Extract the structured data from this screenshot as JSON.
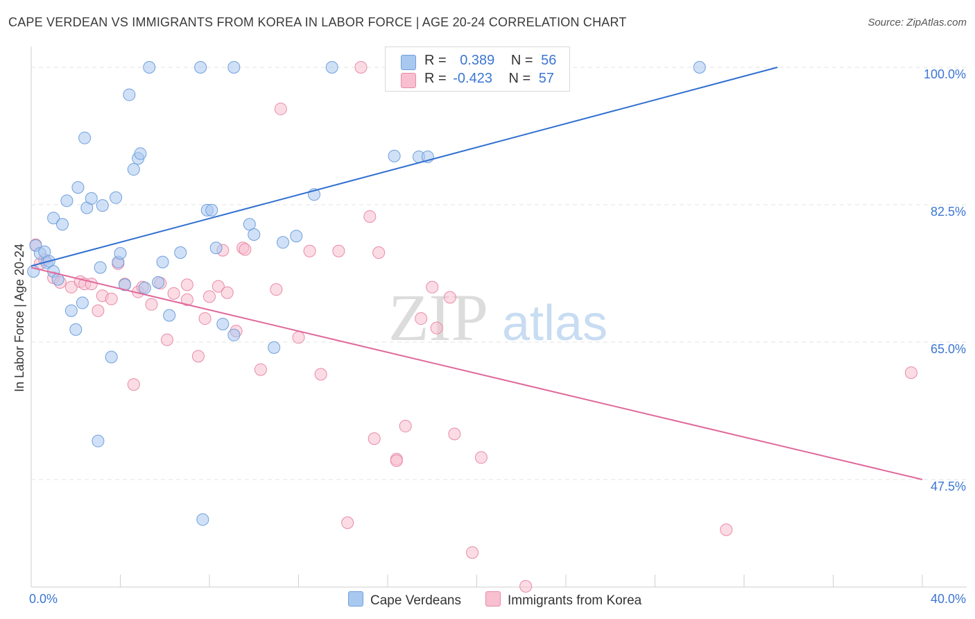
{
  "title": "CAPE VERDEAN VS IMMIGRANTS FROM KOREA IN LABOR FORCE | AGE 20-24 CORRELATION CHART",
  "source": "Source: ZipAtlas.com",
  "watermark": {
    "zip": "ZIP",
    "atlas": "atlas"
  },
  "legend": {
    "rows": [
      {
        "r_label": "R =",
        "r_value": "0.389",
        "n_label": "N =",
        "n_value": "56"
      },
      {
        "r_label": "R =",
        "r_value": "-0.423",
        "n_label": "N =",
        "n_value": "57"
      }
    ]
  },
  "bottom_legend": [
    "Cape Verdeans",
    "Immigrants from Korea"
  ],
  "colors": {
    "blue_fill": "#a9c8f0",
    "blue_stroke": "#6f9fdc",
    "blue_line": "#2f6fd0",
    "pink_fill": "#f7bfd0",
    "pink_stroke": "#e98aa8",
    "pink_line": "#e0689a",
    "tick_label": "#3b76d3",
    "grid": "#e3e3e3"
  },
  "chart_data": {
    "type": "scatter",
    "title": "CAPE VERDEAN VS IMMIGRANTS FROM KOREA IN LABOR FORCE | AGE 20-24 CORRELATION CHART",
    "xlabel": "",
    "ylabel": "In Labor Force | Age 20-24",
    "xlim": [
      0,
      40
    ],
    "ylim": [
      33.8,
      101.5
    ],
    "x_tick_labels": [
      {
        "value": 0,
        "label": "0.0%"
      },
      {
        "value": 40,
        "label": "40.0%"
      }
    ],
    "y_ticks": [
      {
        "value": 100.0,
        "label": "100.0%"
      },
      {
        "value": 82.5,
        "label": "82.5%"
      },
      {
        "value": 65.0,
        "label": "65.0%"
      },
      {
        "value": 47.5,
        "label": "47.5%"
      }
    ],
    "grid": true,
    "legend_position": "top-center",
    "series": [
      {
        "name": "Cape Verdeans",
        "color": "#a9c8f0",
        "trend": {
          "x": [
            0.0,
            33.5
          ],
          "y": [
            74.7,
            100.0
          ]
        },
        "points": [
          [
            0.1,
            74.0
          ],
          [
            0.2,
            77.3
          ],
          [
            0.4,
            76.3
          ],
          [
            0.6,
            76.5
          ],
          [
            0.7,
            75.1
          ],
          [
            0.8,
            75.3
          ],
          [
            1.0,
            74.0
          ],
          [
            1.2,
            73.0
          ],
          [
            1.0,
            80.8
          ],
          [
            1.4,
            80.0
          ],
          [
            1.6,
            83.0
          ],
          [
            1.8,
            69.0
          ],
          [
            2.0,
            66.6
          ],
          [
            2.1,
            84.7
          ],
          [
            2.3,
            70.0
          ],
          [
            2.4,
            91.0
          ],
          [
            2.5,
            82.1
          ],
          [
            2.7,
            83.3
          ],
          [
            3.0,
            52.4
          ],
          [
            3.1,
            74.5
          ],
          [
            3.2,
            82.4
          ],
          [
            3.6,
            63.1
          ],
          [
            3.8,
            83.4
          ],
          [
            3.9,
            75.2
          ],
          [
            4.0,
            76.3
          ],
          [
            4.2,
            72.3
          ],
          [
            4.4,
            96.5
          ],
          [
            4.6,
            87.0
          ],
          [
            4.8,
            88.4
          ],
          [
            4.9,
            89.0
          ],
          [
            5.1,
            71.9
          ],
          [
            5.3,
            100.0
          ],
          [
            5.7,
            72.6
          ],
          [
            5.9,
            75.2
          ],
          [
            6.2,
            68.4
          ],
          [
            6.7,
            76.4
          ],
          [
            7.6,
            100.0
          ],
          [
            7.7,
            42.4
          ],
          [
            7.9,
            81.8
          ],
          [
            8.1,
            81.8
          ],
          [
            8.3,
            77.0
          ],
          [
            8.6,
            67.3
          ],
          [
            9.1,
            65.9
          ],
          [
            9.1,
            100.0
          ],
          [
            9.8,
            80.0
          ],
          [
            10.0,
            78.7
          ],
          [
            10.9,
            64.3
          ],
          [
            11.3,
            77.7
          ],
          [
            11.9,
            78.5
          ],
          [
            12.7,
            83.8
          ],
          [
            13.5,
            100.0
          ],
          [
            16.3,
            88.7
          ],
          [
            17.4,
            88.6
          ],
          [
            17.8,
            88.6
          ],
          [
            21.8,
            100.0
          ],
          [
            30.0,
            100.0
          ]
        ]
      },
      {
        "name": "Immigrants from Korea",
        "color": "#f7bfd0",
        "trend": {
          "x": [
            0.0,
            40.0
          ],
          "y": [
            74.5,
            47.5
          ]
        },
        "points": [
          [
            0.2,
            77.4
          ],
          [
            0.4,
            75.0
          ],
          [
            0.6,
            75.5
          ],
          [
            1.0,
            73.2
          ],
          [
            1.3,
            72.6
          ],
          [
            1.8,
            72.0
          ],
          [
            2.2,
            72.7
          ],
          [
            2.4,
            72.4
          ],
          [
            2.7,
            72.4
          ],
          [
            3.0,
            69.0
          ],
          [
            3.2,
            70.9
          ],
          [
            3.6,
            70.5
          ],
          [
            3.9,
            75.0
          ],
          [
            4.2,
            72.4
          ],
          [
            4.6,
            59.6
          ],
          [
            4.8,
            71.4
          ],
          [
            5.0,
            72.0
          ],
          [
            5.4,
            69.8
          ],
          [
            5.8,
            72.5
          ],
          [
            6.1,
            65.3
          ],
          [
            6.4,
            71.2
          ],
          [
            7.0,
            72.3
          ],
          [
            7.0,
            70.4
          ],
          [
            7.5,
            63.2
          ],
          [
            7.8,
            68.0
          ],
          [
            8.0,
            70.8
          ],
          [
            8.4,
            72.1
          ],
          [
            8.6,
            76.7
          ],
          [
            8.8,
            71.3
          ],
          [
            9.2,
            66.4
          ],
          [
            9.5,
            77.0
          ],
          [
            9.6,
            76.8
          ],
          [
            10.3,
            61.5
          ],
          [
            11.0,
            71.7
          ],
          [
            11.2,
            94.7
          ],
          [
            12.0,
            65.6
          ],
          [
            12.5,
            76.6
          ],
          [
            13.0,
            60.9
          ],
          [
            13.8,
            76.6
          ],
          [
            14.2,
            42.0
          ],
          [
            14.8,
            100.0
          ],
          [
            15.2,
            81.0
          ],
          [
            15.4,
            52.7
          ],
          [
            15.6,
            76.4
          ],
          [
            16.4,
            50.1
          ],
          [
            16.4,
            49.9
          ],
          [
            16.8,
            54.3
          ],
          [
            17.5,
            68.0
          ],
          [
            18.0,
            72.0
          ],
          [
            18.2,
            66.8
          ],
          [
            18.8,
            70.7
          ],
          [
            19.0,
            53.3
          ],
          [
            19.8,
            38.2
          ],
          [
            20.2,
            50.3
          ],
          [
            22.2,
            33.9
          ],
          [
            31.2,
            41.1
          ],
          [
            39.5,
            61.1
          ]
        ]
      }
    ]
  }
}
